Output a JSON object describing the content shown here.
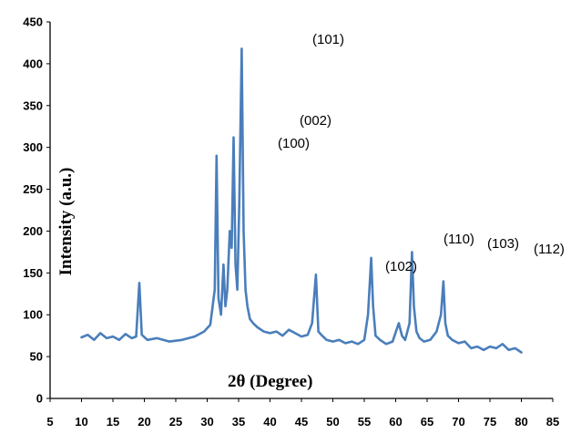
{
  "chart_data": {
    "type": "line",
    "title": "",
    "xlabel": "2θ (Degree)",
    "ylabel": "Intensity (a.u.)",
    "xlim": [
      5,
      85
    ],
    "ylim": [
      0,
      450
    ],
    "xticks": [
      5,
      10,
      15,
      20,
      25,
      30,
      35,
      40,
      45,
      50,
      55,
      60,
      65,
      70,
      75,
      80,
      85
    ],
    "yticks": [
      0,
      50,
      100,
      150,
      200,
      250,
      300,
      350,
      400,
      450
    ],
    "grid": false,
    "legend": "none",
    "color": "#4a7ebb",
    "series": [
      {
        "x": [
          10,
          11,
          12,
          13,
          14,
          15,
          16,
          17,
          18,
          18.7,
          19.2,
          19.6,
          20.5,
          22,
          24,
          26,
          28,
          29.5,
          30.5,
          31.2,
          31.5,
          31.8,
          32.2,
          32.6,
          32.9,
          33.2,
          33.6,
          33.9,
          34.2,
          34.5,
          34.8,
          35.1,
          35.5,
          35.8,
          36.1,
          36.4,
          36.8,
          37.3,
          38,
          39,
          40,
          41,
          42,
          43,
          44,
          45,
          46,
          46.7,
          47.3,
          47.7,
          48.3,
          49,
          50,
          51,
          52,
          53,
          54,
          55,
          55.6,
          56.1,
          56.4,
          56.8,
          57.5,
          58.5,
          59.5,
          60.5,
          61,
          61.5,
          62.2,
          62.6,
          62.9,
          63.3,
          63.8,
          64.5,
          65.5,
          66.5,
          67.2,
          67.6,
          67.9,
          68.3,
          69,
          70,
          71,
          72,
          73,
          74,
          75,
          76,
          77,
          78,
          79,
          80
        ],
        "y": [
          73,
          76,
          70,
          78,
          72,
          74,
          70,
          77,
          72,
          74,
          138,
          76,
          70,
          72,
          68,
          70,
          74,
          80,
          88,
          130,
          290,
          120,
          100,
          160,
          110,
          130,
          200,
          180,
          312,
          160,
          130,
          230,
          418,
          200,
          130,
          110,
          95,
          90,
          85,
          80,
          78,
          80,
          75,
          82,
          78,
          74,
          76,
          90,
          148,
          80,
          75,
          70,
          68,
          70,
          66,
          68,
          65,
          70,
          100,
          168,
          110,
          75,
          70,
          65,
          68,
          90,
          75,
          70,
          90,
          175,
          110,
          80,
          72,
          68,
          70,
          80,
          100,
          140,
          90,
          75,
          70,
          66,
          68,
          60,
          62,
          58,
          62,
          60,
          65,
          58,
          60,
          55
        ]
      }
    ],
    "annotations": [
      "(101)",
      "(002)",
      "(100)",
      "(102)",
      "(110)",
      "(103)",
      "(112)"
    ]
  }
}
